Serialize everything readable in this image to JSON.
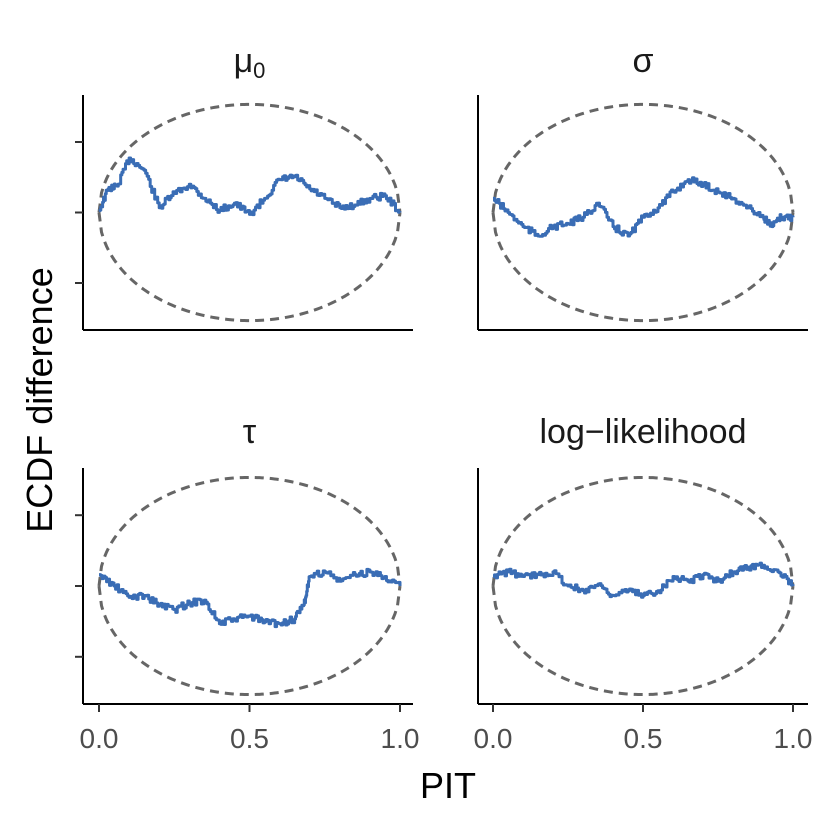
{
  "chart_data": {
    "type": "line",
    "xlabel": "PIT",
    "ylabel": "ECDF difference",
    "xlim": [
      0,
      1
    ],
    "ylim": [
      -1.25,
      1.25
    ],
    "x_ticks": [
      "0.0",
      "0.5",
      "1.0"
    ],
    "y_ticks_labeled": false,
    "grid": false,
    "colors": {
      "ecdf": "#3a6db5",
      "band": "#666666"
    },
    "panels": [
      {
        "title": "μ",
        "title_subscript": "0",
        "ecdf_difference": {
          "x": [
            0,
            0.03,
            0.06,
            0.1,
            0.15,
            0.2,
            0.24,
            0.3,
            0.35,
            0.4,
            0.45,
            0.5,
            0.55,
            0.6,
            0.65,
            0.7,
            0.75,
            0.8,
            0.85,
            0.9,
            0.95,
            1.0
          ],
          "y": [
            0.02,
            0.25,
            0.28,
            0.58,
            0.45,
            0.05,
            0.18,
            0.3,
            0.15,
            0.02,
            0.1,
            -0.02,
            0.15,
            0.35,
            0.38,
            0.25,
            0.15,
            0.05,
            0.08,
            0.15,
            0.18,
            0.0
          ]
        },
        "band": {
          "upper": 1.15,
          "lower": -1.15
        }
      },
      {
        "title": "σ",
        "ecdf_difference": {
          "x": [
            0,
            0.05,
            0.1,
            0.15,
            0.2,
            0.25,
            0.3,
            0.35,
            0.4,
            0.45,
            0.5,
            0.55,
            0.6,
            0.65,
            0.7,
            0.75,
            0.8,
            0.85,
            0.9,
            0.93,
            0.96,
            1.0
          ],
          "y": [
            0.15,
            0.0,
            -0.15,
            -0.25,
            -0.15,
            -0.12,
            -0.05,
            0.1,
            -0.15,
            -0.25,
            -0.05,
            0.05,
            0.22,
            0.35,
            0.3,
            0.22,
            0.15,
            0.05,
            -0.05,
            -0.15,
            -0.05,
            -0.05
          ]
        },
        "band": {
          "upper": 1.15,
          "lower": -1.15
        }
      },
      {
        "title": "τ",
        "ecdf_difference": {
          "x": [
            0,
            0.05,
            0.1,
            0.15,
            0.2,
            0.25,
            0.3,
            0.35,
            0.4,
            0.45,
            0.5,
            0.55,
            0.6,
            0.65,
            0.68,
            0.7,
            0.75,
            0.8,
            0.85,
            0.9,
            0.95,
            1.0
          ],
          "y": [
            0.12,
            0.0,
            -0.12,
            -0.1,
            -0.2,
            -0.25,
            -0.18,
            -0.15,
            -0.4,
            -0.35,
            -0.32,
            -0.38,
            -0.4,
            -0.35,
            -0.2,
            0.1,
            0.15,
            0.05,
            0.12,
            0.15,
            0.1,
            0.0
          ]
        },
        "band": {
          "upper": 1.15,
          "lower": -1.15
        }
      },
      {
        "title": "log−likelihood",
        "ecdf_difference": {
          "x": [
            0,
            0.05,
            0.1,
            0.15,
            0.2,
            0.25,
            0.3,
            0.35,
            0.4,
            0.45,
            0.5,
            0.55,
            0.6,
            0.65,
            0.7,
            0.75,
            0.8,
            0.85,
            0.9,
            0.95,
            1.0
          ],
          "y": [
            0.1,
            0.15,
            0.1,
            0.12,
            0.15,
            0.0,
            -0.05,
            0.02,
            -0.1,
            -0.05,
            -0.1,
            -0.05,
            0.1,
            0.05,
            0.12,
            0.05,
            0.15,
            0.2,
            0.22,
            0.15,
            0.0
          ]
        },
        "band": {
          "upper": 1.15,
          "lower": -1.15
        }
      }
    ]
  }
}
